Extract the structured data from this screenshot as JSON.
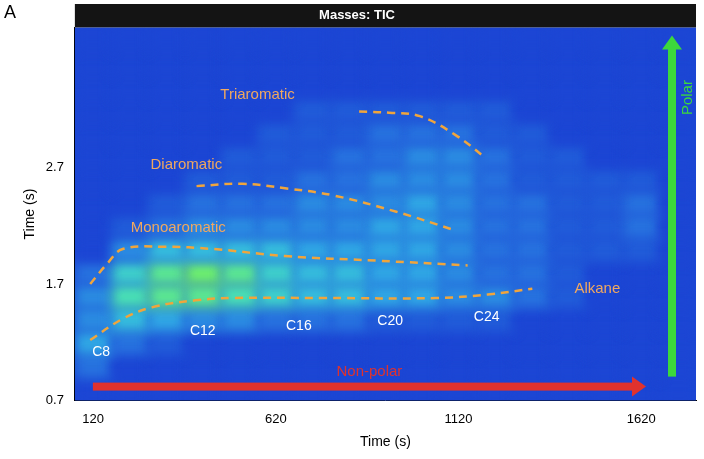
{
  "chart_data": {
    "type": "heatmap",
    "panel": "A",
    "title": "Masses: TIC",
    "x_label": "Time (s)",
    "y_label": "Time (s)",
    "xlim": [
      70,
      1770
    ],
    "xticks": [
      120,
      620,
      1120,
      1620
    ],
    "ylim": [
      0.7,
      3.9
    ],
    "yticks": [
      0.7,
      1.7,
      2.7
    ],
    "grid": false,
    "x_bins": [
      70,
      170,
      270,
      370,
      470,
      570,
      670,
      770,
      870,
      970,
      1070,
      1170,
      1270,
      1370,
      1470,
      1570,
      1670,
      1770
    ],
    "y_bins": [
      0.7,
      0.9,
      1.1,
      1.3,
      1.5,
      1.7,
      1.9,
      2.1,
      2.3,
      2.5,
      2.7,
      2.9,
      3.1,
      3.3,
      3.5,
      3.7,
      3.9
    ],
    "cells": [
      [
        0,
        0,
        0,
        0,
        0,
        0,
        0,
        0,
        0,
        0,
        0,
        0,
        0,
        0,
        0,
        0,
        0
      ],
      [
        2,
        0,
        0,
        0,
        0,
        0,
        0,
        0,
        0,
        0,
        0,
        0,
        0,
        0,
        0,
        0,
        0
      ],
      [
        4,
        2,
        1,
        0,
        0,
        0,
        0,
        0,
        0,
        0,
        0,
        0,
        0,
        0,
        0,
        0,
        0
      ],
      [
        3,
        5,
        4,
        3,
        3,
        2,
        2,
        2,
        1,
        1,
        1,
        1,
        0,
        0,
        0,
        0,
        0
      ],
      [
        3,
        7,
        8,
        8,
        7,
        6,
        5,
        5,
        4,
        4,
        3,
        3,
        2,
        1,
        0,
        0,
        0
      ],
      [
        2,
        6,
        8,
        9,
        8,
        6,
        5,
        5,
        4,
        4,
        3,
        2,
        2,
        1,
        0,
        0,
        0
      ],
      [
        0,
        3,
        5,
        5,
        5,
        5,
        4,
        4,
        4,
        4,
        3,
        2,
        2,
        1,
        1,
        1,
        0
      ],
      [
        0,
        1,
        2,
        3,
        3,
        3,
        3,
        3,
        4,
        4,
        3,
        2,
        2,
        1,
        1,
        2,
        0
      ],
      [
        0,
        0,
        1,
        2,
        2,
        2,
        3,
        3,
        3,
        4,
        3,
        2,
        2,
        1,
        1,
        2,
        0
      ],
      [
        0,
        0,
        0,
        1,
        1,
        1,
        2,
        2,
        3,
        3,
        3,
        2,
        1,
        1,
        1,
        1,
        0
      ],
      [
        0,
        0,
        0,
        0,
        1,
        1,
        1,
        2,
        2,
        3,
        3,
        2,
        1,
        1,
        0,
        0,
        0
      ],
      [
        0,
        0,
        0,
        0,
        0,
        1,
        1,
        1,
        2,
        2,
        2,
        1,
        1,
        0,
        0,
        0,
        0
      ],
      [
        0,
        0,
        0,
        0,
        0,
        0,
        1,
        1,
        1,
        1,
        1,
        1,
        0,
        0,
        0,
        0,
        0
      ],
      [
        0,
        0,
        0,
        0,
        0,
        0,
        0,
        0,
        0,
        0,
        0,
        0,
        0,
        0,
        0,
        0,
        0
      ],
      [
        0,
        0,
        0,
        0,
        0,
        0,
        0,
        0,
        0,
        0,
        0,
        0,
        0,
        0,
        0,
        0,
        0
      ],
      [
        0,
        0,
        0,
        0,
        0,
        0,
        0,
        0,
        0,
        0,
        0,
        0,
        0,
        0,
        0,
        0,
        0
      ]
    ],
    "series": [
      {
        "color": "#f0a53c",
        "line_style": "dashed",
        "x": [
          112,
          200,
          281,
          400,
          503,
          750,
          1058,
          1200,
          1322
        ],
        "values": [
          1.22,
          1.4,
          1.5,
          1.56,
          1.58,
          1.58,
          1.58,
          1.61,
          1.66
        ]
      },
      {
        "color": "#f0a53c",
        "line_style": "dashed",
        "x": [
          112,
          160,
          201,
          312,
          450,
          645,
          900,
          1145
        ],
        "values": [
          1.7,
          1.88,
          2.0,
          2.02,
          2.0,
          1.94,
          1.9,
          1.86
        ]
      },
      {
        "color": "#f0a53c",
        "line_style": "dashed",
        "x": [
          403,
          528,
          650,
          778,
          950,
          1111
        ],
        "values": [
          2.54,
          2.56,
          2.52,
          2.46,
          2.32,
          2.16
        ]
      },
      {
        "color": "#f0a53c",
        "line_style": "dashed",
        "x": [
          848,
          930,
          1014,
          1111,
          1195
        ],
        "values": [
          3.18,
          3.17,
          3.14,
          2.98,
          2.78
        ]
      }
    ],
    "annotations": [
      {
        "text": "Triaromatic",
        "x": 570,
        "y": 3.32,
        "color": "#f0a860"
      },
      {
        "text": "Diaromatic",
        "x": 375,
        "y": 2.72,
        "color": "#f0a860"
      },
      {
        "text": "Monoaromatic",
        "x": 353,
        "y": 2.18,
        "color": "#f0a860"
      },
      {
        "text": "Alkane",
        "x": 1500,
        "y": 1.66,
        "color": "#f0a860"
      },
      {
        "text": "C8",
        "x": 142,
        "y": 1.12,
        "color": "#ffffff"
      },
      {
        "text": "C12",
        "x": 420,
        "y": 1.3,
        "color": "#ffffff"
      },
      {
        "text": "C16",
        "x": 683,
        "y": 1.34,
        "color": "#ffffff"
      },
      {
        "text": "C20",
        "x": 933,
        "y": 1.38,
        "color": "#ffffff"
      },
      {
        "text": "C24",
        "x": 1197,
        "y": 1.42,
        "color": "#ffffff"
      }
    ],
    "arrows": [
      {
        "text": "Non-polar",
        "color": "#e0322d"
      },
      {
        "text": "Polar",
        "color": "#3cd83c"
      }
    ]
  }
}
